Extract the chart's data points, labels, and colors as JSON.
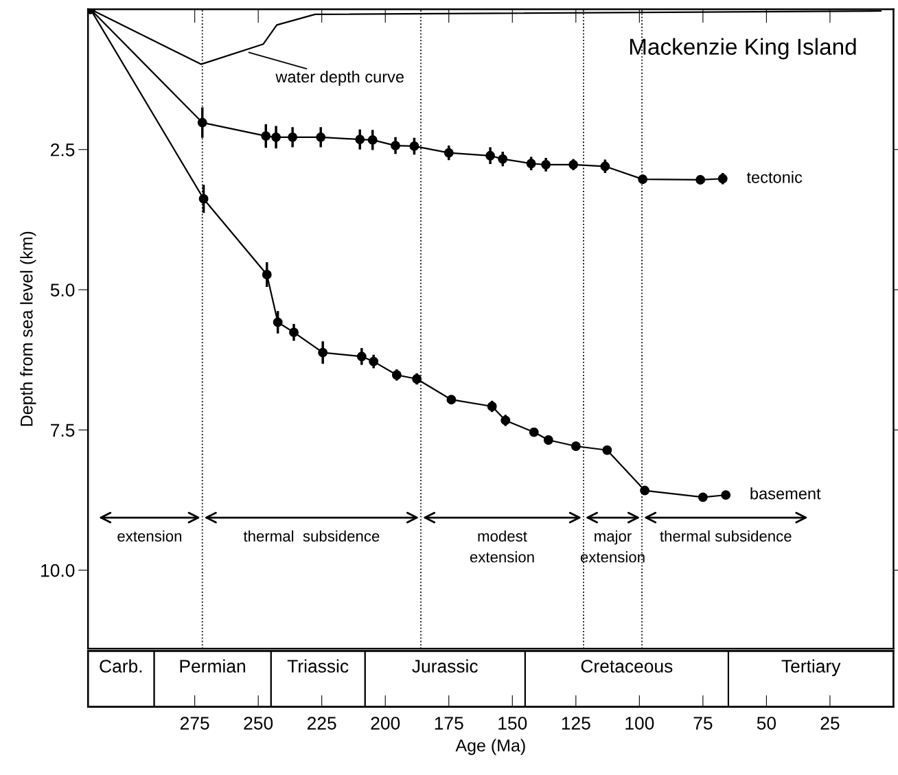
{
  "chart_data": [
    {
      "type": "line",
      "title": "Mackenzie King Island",
      "ylabel": "Depth from sea level (km)",
      "xlim": [
        317,
        0
      ],
      "xticks": [
        {
          "value": 275,
          "label": null
        },
        {
          "value": 250,
          "label": null
        },
        {
          "value": 225,
          "label": null
        },
        {
          "value": 200,
          "label": null
        },
        {
          "value": 175,
          "label": null
        },
        {
          "value": 150,
          "label": null
        },
        {
          "value": 125,
          "label": null
        },
        {
          "value": 100,
          "label": null
        },
        {
          "value": 75,
          "label": null
        },
        {
          "value": 50,
          "label": null
        },
        {
          "value": 25,
          "label": null
        }
      ],
      "ylim": [
        11.4,
        0
      ],
      "yticks": [
        2.5,
        {
          "value": 5,
          "label": "5.0"
        },
        7.5,
        {
          "value": 10,
          "label": "10.0"
        }
      ],
      "tick_labels": "y",
      "grid": false,
      "legend": false,
      "line_style": "solid",
      "series": [
        {
          "name": "tectonic",
          "color": "#000000",
          "marker": "circle",
          "x": [
            316,
            272,
            247,
            243,
            236.5,
            225.4,
            210,
            205,
            196,
            188.6,
            175,
            158.7,
            153.8,
            142.6,
            136.8,
            126,
            113.5,
            98.7,
            76,
            67.2
          ],
          "values": [
            0,
            2.02,
            2.26,
            2.28,
            2.28,
            2.28,
            2.32,
            2.33,
            2.43,
            2.44,
            2.56,
            2.61,
            2.67,
            2.75,
            2.77,
            2.77,
            2.8,
            3.03,
            3.04,
            3.02
          ],
          "errors": [
            null,
            0.27,
            0.21,
            0.2,
            0.18,
            0.18,
            0.18,
            0.18,
            0.15,
            0.15,
            0.13,
            0.15,
            0.13,
            0.12,
            0.12,
            0.1,
            0.12,
            0.08,
            0.08,
            0.1
          ]
        },
        {
          "name": "basement",
          "color": "#000000",
          "marker": "circle",
          "x": [
            316,
            271.5,
            246.6,
            242.3,
            236,
            224.6,
            209.3,
            204.6,
            195.5,
            187.6,
            174,
            158,
            152.7,
            141.5,
            135.8,
            125,
            112.7,
            97.9,
            75,
            66
          ],
          "values": [
            0,
            3.38,
            4.73,
            5.58,
            5.76,
            6.12,
            6.19,
            6.28,
            6.52,
            6.59,
            6.96,
            7.08,
            7.33,
            7.54,
            7.68,
            7.79,
            7.86,
            8.58,
            8.7,
            8.66
          ],
          "errors": [
            null,
            0.25,
            0.22,
            0.2,
            0.15,
            0.2,
            0.15,
            0.12,
            0.1,
            0.1,
            0.08,
            0.1,
            0.1,
            0.07,
            0.07,
            0.07,
            0.07,
            null,
            null,
            null
          ]
        },
        {
          "color": "#000000",
          "marker": "none",
          "x": [
            316,
            272.5,
            248,
            242.7,
            227.6,
            5
          ],
          "values": [
            0,
            0.98,
            0.62,
            0.28,
            0.09,
            0.03
          ]
        }
      ],
      "ref_lines": [
        {
          "axis": "x",
          "value": 272,
          "line_style": "dotted"
        },
        {
          "axis": "x",
          "value": 186,
          "line_style": "dotted"
        },
        {
          "axis": "x",
          "value": 122,
          "line_style": "dotted"
        },
        {
          "axis": "x",
          "value": 99,
          "line_style": "dotted"
        }
      ],
      "annotations": [
        {
          "text": "water depth curve",
          "x": 253.7,
          "y": 0.77
        },
        "extension",
        "thermal  subsidence",
        "modest\nextension",
        "major\nextension",
        "thermal subsidence"
      ]
    },
    {
      "type": "bar",
      "orientation": "horizontal",
      "stacked": true,
      "xlabel": "Age (Ma)",
      "categories": [
        null
      ],
      "xlim": [
        317,
        0
      ],
      "xticks": [
        275,
        250,
        225,
        200,
        175,
        150,
        125,
        100,
        75,
        50,
        25
      ],
      "tick_labels": "x",
      "series": [
        {
          "name": "Tertiary",
          "color": "#ffffff",
          "values": [
            65
          ]
        },
        {
          "name": "Cretaceous",
          "color": "#ffffff",
          "values": [
            80
          ]
        },
        {
          "name": "Jurassic",
          "color": "#ffffff",
          "values": [
            63
          ]
        },
        {
          "name": "Triassic",
          "color": "#ffffff",
          "values": [
            37
          ]
        },
        {
          "name": "Permian",
          "color": "#ffffff",
          "values": [
            46
          ]
        },
        {
          "name": "Carb.",
          "color": "#ffffff",
          "values": [
            26
          ]
        }
      ]
    }
  ]
}
